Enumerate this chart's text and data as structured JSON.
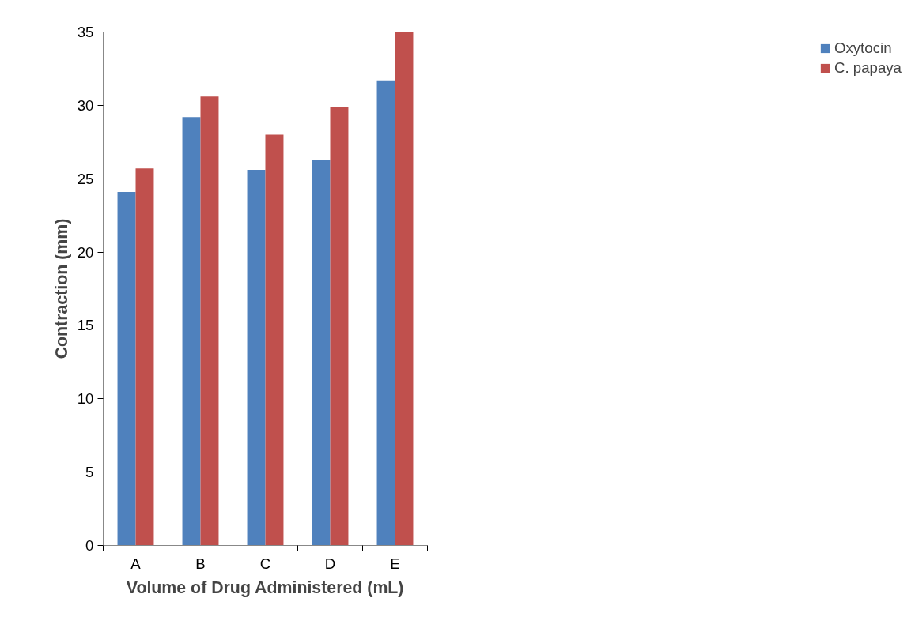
{
  "chart_data": {
    "type": "bar",
    "xlabel": "Volume of Drug Administered (mL)",
    "ylabel": "Contraction (mm)",
    "categories": [
      "A",
      "B",
      "C",
      "D",
      "E"
    ],
    "series": [
      {
        "name": "Oxytocin",
        "color": "#4f81bd",
        "values": [
          24.1,
          29.2,
          25.6,
          26.3,
          31.7
        ]
      },
      {
        "name": "C. papaya",
        "color": "#c0504d",
        "values": [
          25.7,
          30.6,
          28.0,
          29.9,
          35.0
        ]
      }
    ],
    "ylim": [
      0,
      35
    ],
    "yticks": [
      0,
      5,
      10,
      15,
      20,
      25,
      30,
      35
    ],
    "grid": false,
    "legend": "right"
  }
}
